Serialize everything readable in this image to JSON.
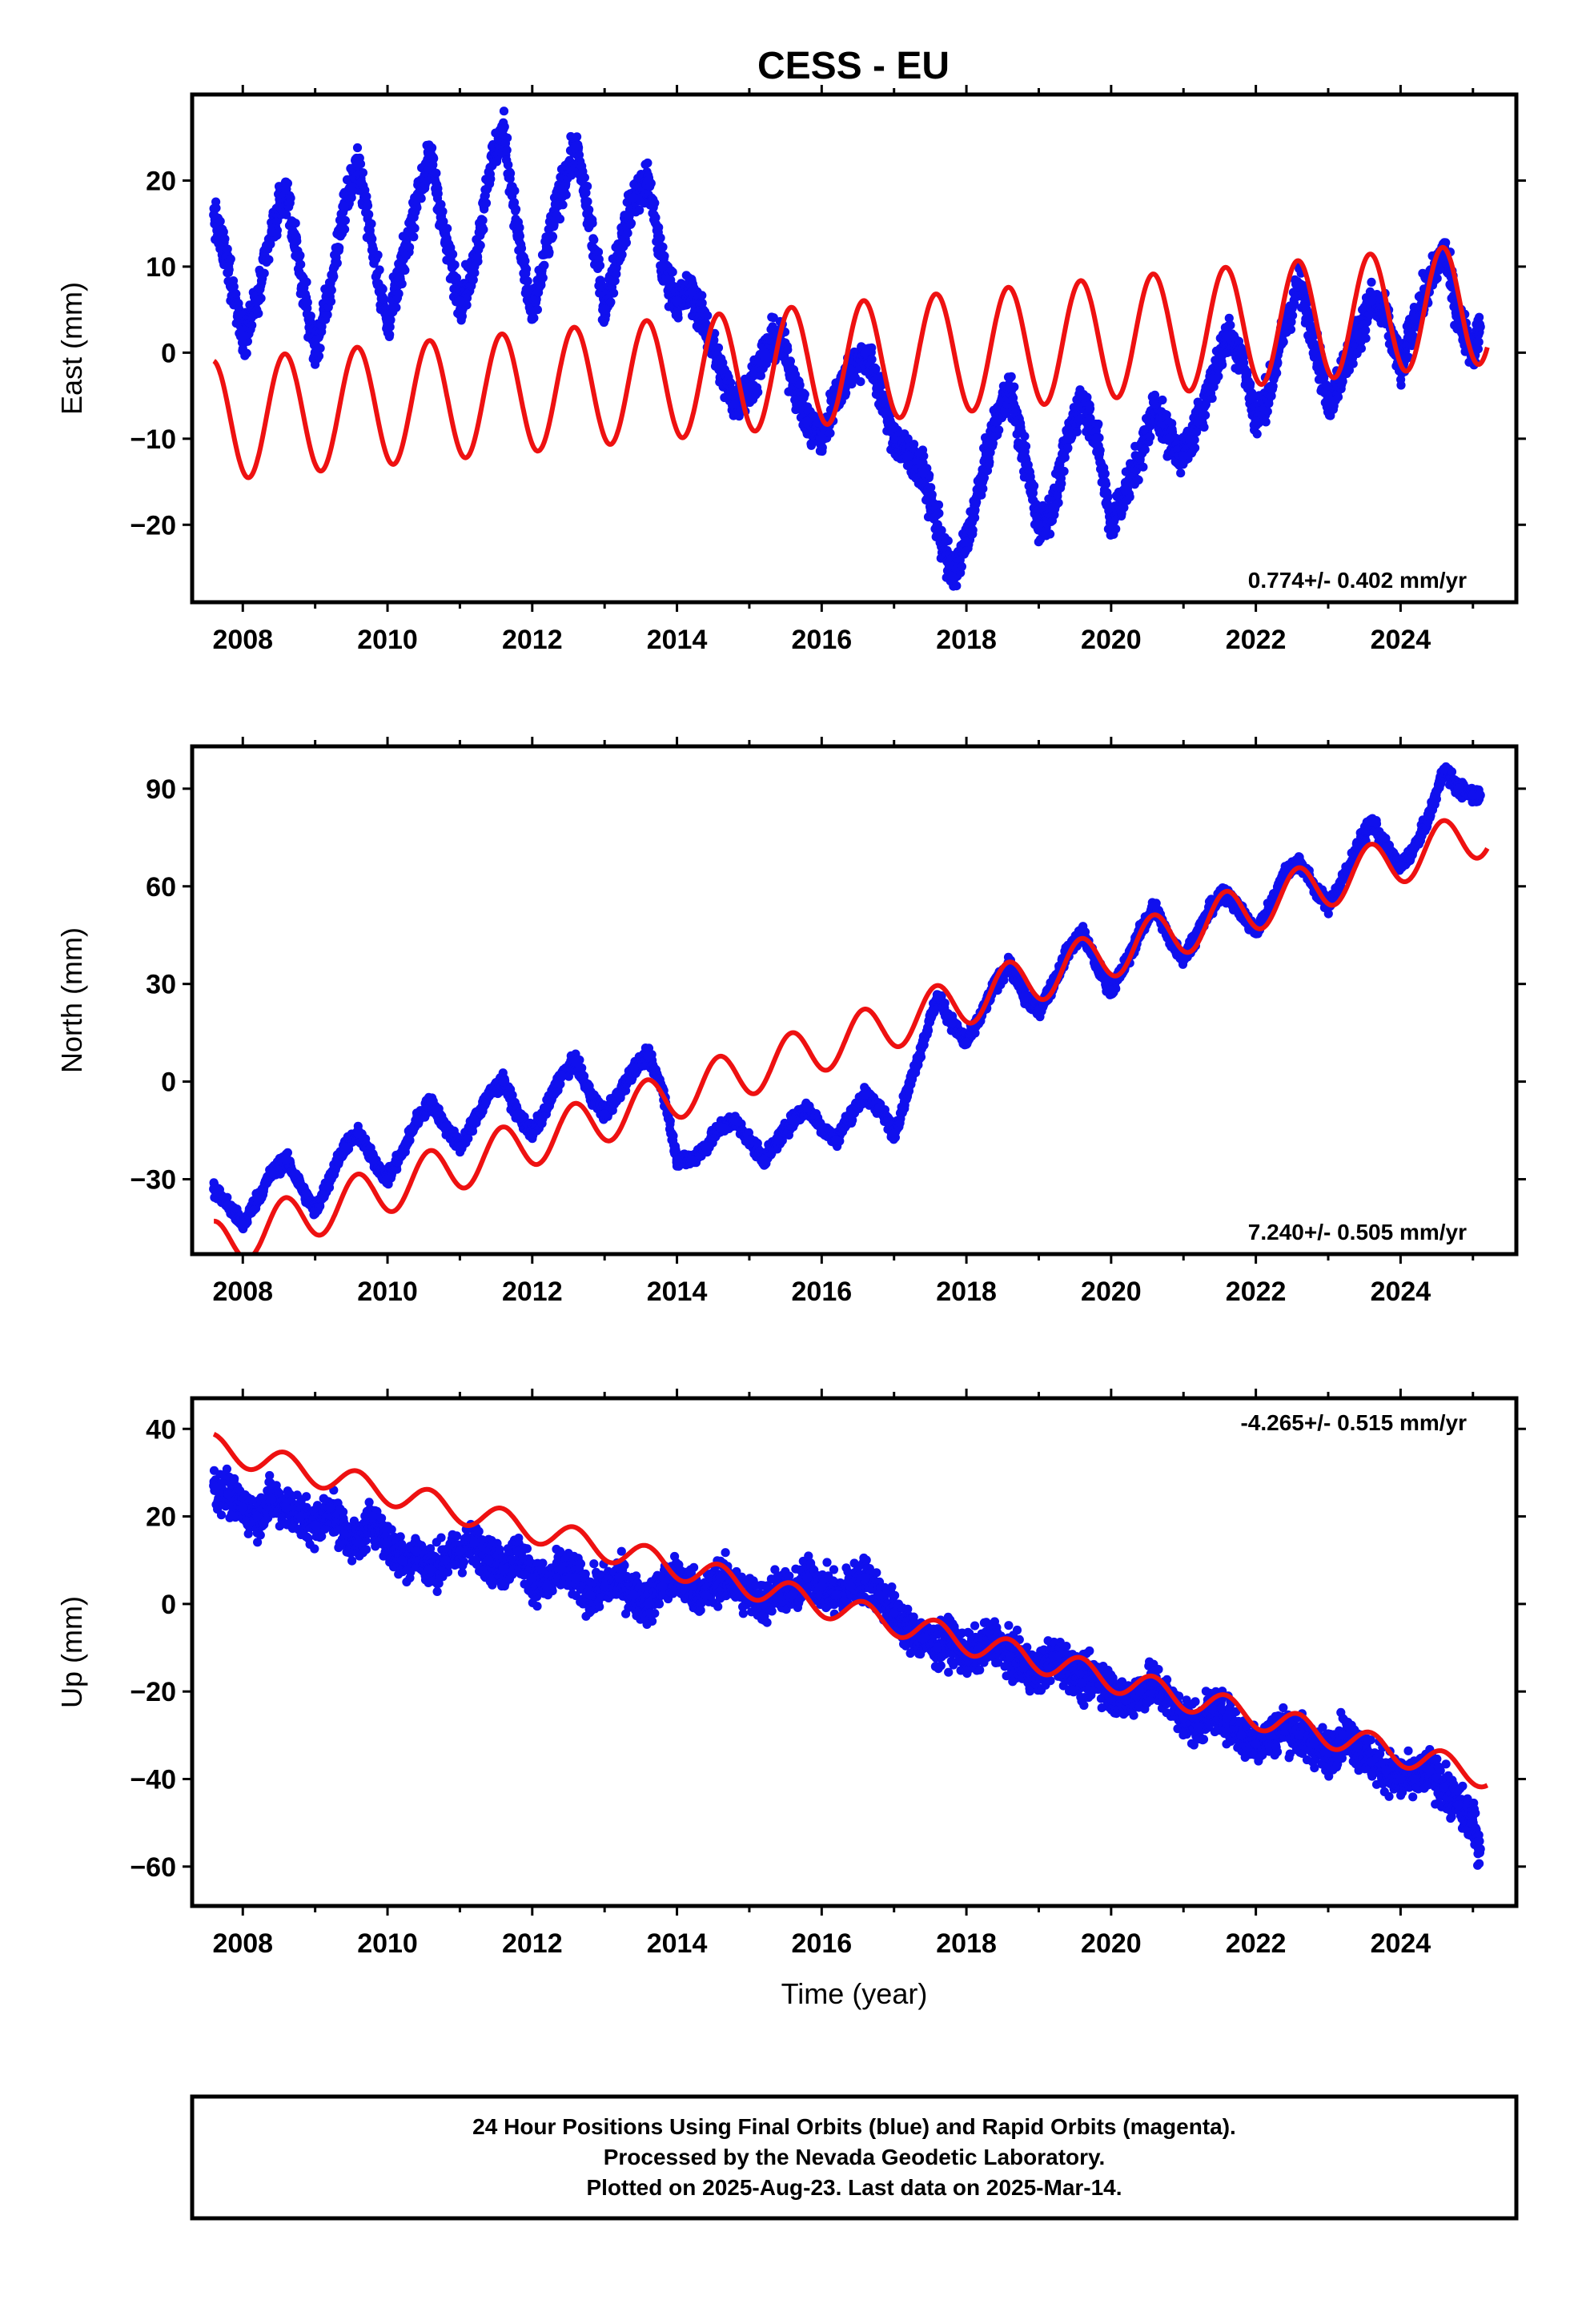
{
  "figure": {
    "title": "CESS - EU",
    "caption": [
      "24 Hour Positions Using Final Orbits (blue) and Rapid Orbits (magenta).",
      "Processed by the Nevada Geodetic Laboratory.",
      "Plotted on 2025-Aug-23. Last data on 2025-Mar-14."
    ]
  },
  "colors": {
    "observations": "#1010ee",
    "model": "#ee1111",
    "frame": "#000000"
  },
  "chart_data": [
    {
      "type": "scatter",
      "ylabel": "East (mm)",
      "xlabel": "",
      "xlim": [
        2007.3,
        2025.6
      ],
      "ylim": [
        -29,
        30
      ],
      "xticks": [
        2008,
        2010,
        2012,
        2014,
        2016,
        2018,
        2020,
        2022,
        2024
      ],
      "yticks": [
        -20,
        -10,
        0,
        10,
        20
      ],
      "rate_text": "0.774+/- 0.402 mm/yr",
      "rate_position": "bottom-right",
      "series": [
        {
          "kind": "points",
          "color": "#1010ee",
          "x": [
            2007.6,
            2007.8,
            2008.0,
            2008.2,
            2008.4,
            2008.6,
            2008.8,
            2009.0,
            2009.2,
            2009.4,
            2009.6,
            2009.8,
            2010.0,
            2010.2,
            2010.4,
            2010.6,
            2010.8,
            2011.0,
            2011.2,
            2011.4,
            2011.6,
            2011.8,
            2012.0,
            2012.2,
            2012.4,
            2012.6,
            2012.8,
            2013.0,
            2013.2,
            2013.4,
            2013.6,
            2013.8,
            2014.0,
            2014.2,
            2014.4,
            2014.6,
            2014.8,
            2015.0,
            2015.2,
            2015.4,
            2015.6,
            2015.8,
            2016.0,
            2016.2,
            2016.4,
            2016.6,
            2016.8,
            2017.0,
            2017.2,
            2017.4,
            2017.6,
            2017.8,
            2018.0,
            2018.2,
            2018.4,
            2018.6,
            2018.8,
            2019.0,
            2019.2,
            2019.4,
            2019.6,
            2019.8,
            2020.0,
            2020.2,
            2020.4,
            2020.6,
            2020.8,
            2021.0,
            2021.2,
            2021.4,
            2021.6,
            2021.8,
            2022.0,
            2022.2,
            2022.4,
            2022.6,
            2022.8,
            2023.0,
            2023.2,
            2023.4,
            2023.6,
            2023.8,
            2024.0,
            2024.2,
            2024.4,
            2024.6,
            2024.8,
            2025.0,
            2025.1
          ],
          "y": [
            16,
            10,
            2,
            6,
            14,
            19,
            9,
            0,
            7,
            17,
            22,
            12,
            3,
            10,
            18,
            23,
            13,
            6,
            10,
            21,
            26,
            14,
            4,
            12,
            19,
            24,
            15,
            5,
            12,
            18,
            20,
            10,
            6,
            7,
            3,
            -2,
            -6,
            -4,
            0,
            2,
            -3,
            -8,
            -10,
            -5,
            -2,
            0,
            -4,
            -10,
            -12,
            -14,
            -20,
            -26,
            -22,
            -15,
            -8,
            -4,
            -12,
            -20,
            -18,
            -10,
            -5,
            -10,
            -20,
            -16,
            -12,
            -6,
            -10,
            -12,
            -8,
            -3,
            2,
            0,
            -8,
            -4,
            3,
            8,
            2,
            -6,
            -2,
            2,
            6,
            4,
            -2,
            4,
            8,
            12,
            4,
            0,
            3
          ]
        },
        {
          "kind": "line",
          "color": "#ee1111",
          "amplitude": 7.0,
          "phase_peak": 0.58,
          "trend": 0.774,
          "offset_at_2016": -1.4
        }
      ]
    },
    {
      "type": "scatter",
      "ylabel": "North (mm)",
      "xlabel": "",
      "xlim": [
        2007.3,
        2025.6
      ],
      "ylim": [
        -53,
        103
      ],
      "xticks": [
        2008,
        2010,
        2012,
        2014,
        2016,
        2018,
        2020,
        2022,
        2024
      ],
      "yticks": [
        -30,
        0,
        30,
        60,
        90
      ],
      "rate_text": "7.240+/- 0.505 mm/yr",
      "rate_position": "bottom-right",
      "series": [
        {
          "kind": "points",
          "color": "#1010ee",
          "x": [
            2007.6,
            2007.8,
            2008.0,
            2008.2,
            2008.4,
            2008.6,
            2008.8,
            2009.0,
            2009.2,
            2009.4,
            2009.6,
            2009.8,
            2010.0,
            2010.2,
            2010.4,
            2010.6,
            2010.8,
            2011.0,
            2011.2,
            2011.4,
            2011.6,
            2011.8,
            2012.0,
            2012.2,
            2012.4,
            2012.6,
            2012.8,
            2013.0,
            2013.2,
            2013.4,
            2013.6,
            2013.8,
            2014.0,
            2014.2,
            2014.4,
            2014.6,
            2014.8,
            2015.0,
            2015.2,
            2015.4,
            2015.6,
            2015.8,
            2016.0,
            2016.2,
            2016.4,
            2016.6,
            2016.8,
            2017.0,
            2017.2,
            2017.4,
            2017.6,
            2017.8,
            2018.0,
            2018.2,
            2018.4,
            2018.6,
            2018.8,
            2019.0,
            2019.2,
            2019.4,
            2019.6,
            2019.8,
            2020.0,
            2020.2,
            2020.4,
            2020.6,
            2020.8,
            2021.0,
            2021.2,
            2021.4,
            2021.6,
            2021.8,
            2022.0,
            2022.2,
            2022.4,
            2022.6,
            2022.8,
            2023.0,
            2023.2,
            2023.4,
            2023.6,
            2023.8,
            2024.0,
            2024.2,
            2024.4,
            2024.6,
            2024.8,
            2025.0,
            2025.1
          ],
          "y": [
            -33,
            -38,
            -44,
            -36,
            -28,
            -24,
            -32,
            -40,
            -30,
            -20,
            -16,
            -24,
            -30,
            -22,
            -12,
            -6,
            -14,
            -20,
            -12,
            -4,
            0,
            -10,
            -16,
            -8,
            2,
            6,
            -4,
            -10,
            -4,
            4,
            8,
            -2,
            -24,
            -24,
            -20,
            -14,
            -12,
            -18,
            -24,
            -18,
            -12,
            -8,
            -14,
            -18,
            -10,
            -4,
            -8,
            -16,
            -2,
            12,
            26,
            18,
            12,
            20,
            30,
            36,
            26,
            22,
            30,
            40,
            46,
            36,
            28,
            36,
            46,
            54,
            44,
            38,
            46,
            54,
            58,
            52,
            46,
            54,
            64,
            68,
            60,
            54,
            62,
            72,
            80,
            72,
            66,
            72,
            82,
            96,
            90,
            88,
            88
          ]
        },
        {
          "kind": "line",
          "color": "#ee1111",
          "amplitude": 7.5,
          "phase_peak": 0.58,
          "trend": 7.24,
          "offset_at_2016": 10.5
        }
      ]
    },
    {
      "type": "scatter",
      "ylabel": "Up (mm)",
      "xlabel": "Time (year)",
      "xlim": [
        2007.3,
        2025.6
      ],
      "ylim": [
        -69,
        47
      ],
      "xticks": [
        2008,
        2010,
        2012,
        2014,
        2016,
        2018,
        2020,
        2022,
        2024
      ],
      "yticks": [
        -60,
        -40,
        -20,
        0,
        20,
        40
      ],
      "rate_text": "-4.265+/- 0.515 mm/yr",
      "rate_position": "top-right",
      "series": [
        {
          "kind": "points",
          "color": "#1010ee",
          "x": [
            2007.6,
            2007.8,
            2008.0,
            2008.2,
            2008.4,
            2008.6,
            2008.8,
            2009.0,
            2009.2,
            2009.4,
            2009.6,
            2009.8,
            2010.0,
            2010.2,
            2010.4,
            2010.6,
            2010.8,
            2011.0,
            2011.2,
            2011.4,
            2011.6,
            2011.8,
            2012.0,
            2012.2,
            2012.4,
            2012.6,
            2012.8,
            2013.0,
            2013.2,
            2013.4,
            2013.6,
            2013.8,
            2014.0,
            2014.2,
            2014.4,
            2014.6,
            2014.8,
            2015.0,
            2015.2,
            2015.4,
            2015.6,
            2015.8,
            2016.0,
            2016.2,
            2016.4,
            2016.6,
            2016.8,
            2017.0,
            2017.2,
            2017.4,
            2017.6,
            2017.8,
            2018.0,
            2018.2,
            2018.4,
            2018.6,
            2018.8,
            2019.0,
            2019.2,
            2019.4,
            2019.6,
            2019.8,
            2020.0,
            2020.2,
            2020.4,
            2020.6,
            2020.8,
            2021.0,
            2021.2,
            2021.4,
            2021.6,
            2021.8,
            2022.0,
            2022.2,
            2022.4,
            2022.6,
            2022.8,
            2023.0,
            2023.2,
            2023.4,
            2023.6,
            2023.8,
            2024.0,
            2024.2,
            2024.4,
            2024.6,
            2024.8,
            2025.0,
            2025.1
          ],
          "y": [
            27,
            25,
            22,
            20,
            24,
            22,
            20,
            18,
            22,
            16,
            14,
            20,
            14,
            10,
            12,
            8,
            10,
            12,
            14,
            10,
            8,
            12,
            6,
            4,
            8,
            6,
            2,
            4,
            6,
            2,
            0,
            4,
            6,
            4,
            2,
            6,
            4,
            2,
            0,
            4,
            2,
            6,
            4,
            2,
            4,
            6,
            2,
            -2,
            -6,
            -8,
            -10,
            -8,
            -12,
            -10,
            -8,
            -12,
            -14,
            -16,
            -12,
            -14,
            -18,
            -16,
            -20,
            -22,
            -20,
            -18,
            -22,
            -26,
            -28,
            -24,
            -26,
            -30,
            -32,
            -30,
            -28,
            -30,
            -32,
            -34,
            -30,
            -32,
            -36,
            -38,
            -40,
            -40,
            -38,
            -42,
            -46,
            -50,
            -56
          ]
        },
        {
          "kind": "line",
          "color": "#ee1111",
          "amplitude": 3.0,
          "phase_peak": 0.58,
          "trend": -4.265,
          "offset_at_2016": 0.0
        }
      ]
    }
  ]
}
